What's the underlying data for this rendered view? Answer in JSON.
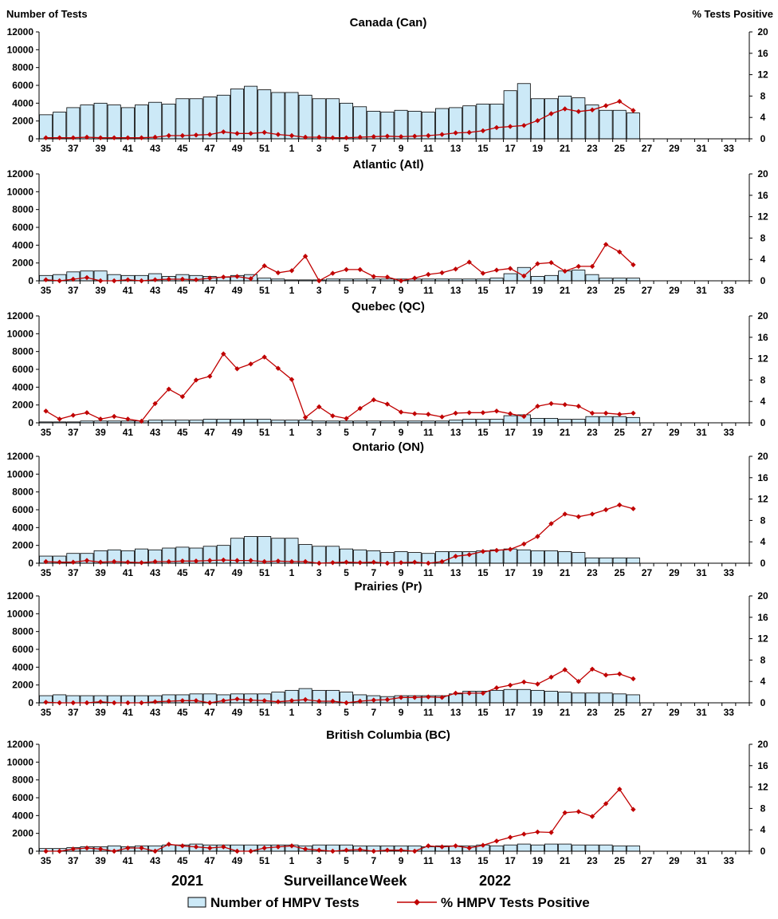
{
  "header": {
    "left_axis_title": "Number of Tests",
    "right_axis_title": "% Tests Positive"
  },
  "x_axis": {
    "labels": [
      "2021",
      "Surveillance",
      "Week",
      "2022"
    ]
  },
  "legend": {
    "bars_label": "Number of HMPV Tests",
    "line_label": "% HMPV Tests Positive"
  },
  "colors": {
    "bar_fill": "#cce9f7",
    "bar_stroke": "#000000",
    "line": "#c00000"
  },
  "chart_data": [
    {
      "type": "bar+line",
      "title": "Canada (Can)",
      "weeks": [
        "35",
        "36",
        "37",
        "38",
        "39",
        "40",
        "41",
        "42",
        "43",
        "44",
        "45",
        "46",
        "47",
        "48",
        "49",
        "50",
        "51",
        "52",
        "1",
        "2",
        "3",
        "4",
        "5",
        "6",
        "7",
        "8",
        "9",
        "10",
        "11",
        "12",
        "13",
        "14",
        "15",
        "16",
        "17",
        "18",
        "19",
        "20",
        "21",
        "22",
        "23",
        "24",
        "25",
        "26",
        "27",
        "28",
        "29",
        "30",
        "31",
        "32",
        "33",
        "34"
      ],
      "tick_labels": [
        "35",
        "37",
        "39",
        "41",
        "43",
        "45",
        "47",
        "49",
        "51",
        "1",
        "3",
        "5",
        "7",
        "9",
        "11",
        "13",
        "15",
        "17",
        "19",
        "21",
        "23",
        "25",
        "27",
        "29",
        "31",
        "33"
      ],
      "tests": [
        2700,
        3000,
        3500,
        3800,
        4000,
        3800,
        3500,
        3800,
        4100,
        3900,
        4500,
        4500,
        4700,
        4900,
        5600,
        5900,
        5500,
        5200,
        5200,
        4900,
        4500,
        4500,
        4000,
        3600,
        3100,
        3000,
        3200,
        3100,
        3000,
        3400,
        3500,
        3700,
        3900,
        3900,
        5400,
        6200,
        4500,
        4500,
        4800,
        4600,
        3800,
        3200,
        3200,
        2900,
        null,
        null,
        null,
        null,
        null,
        null,
        null,
        null
      ],
      "percent_positive": [
        0.2,
        0.2,
        0.2,
        0.3,
        0.2,
        0.2,
        0.2,
        0.2,
        0.3,
        0.6,
        0.6,
        0.7,
        0.8,
        1.3,
        1.0,
        1.0,
        1.2,
        0.8,
        0.6,
        0.3,
        0.3,
        0.2,
        0.2,
        0.3,
        0.4,
        0.5,
        0.4,
        0.5,
        0.6,
        0.8,
        1.1,
        1.2,
        1.5,
        2.1,
        2.3,
        2.5,
        3.4,
        4.7,
        5.6,
        5.1,
        5.4,
        6.2,
        7.0,
        5.3,
        null,
        null,
        null,
        null,
        null,
        null,
        null,
        null
      ],
      "ylim_left": [
        0,
        12000
      ],
      "ylim_right": [
        0,
        20
      ]
    },
    {
      "type": "bar+line",
      "title": "Atlantic (Atl)",
      "weeks": [
        "35",
        "36",
        "37",
        "38",
        "39",
        "40",
        "41",
        "42",
        "43",
        "44",
        "45",
        "46",
        "47",
        "48",
        "49",
        "50",
        "51",
        "52",
        "1",
        "2",
        "3",
        "4",
        "5",
        "6",
        "7",
        "8",
        "9",
        "10",
        "11",
        "12",
        "13",
        "14",
        "15",
        "16",
        "17",
        "18",
        "19",
        "20",
        "21",
        "22",
        "23",
        "24",
        "25",
        "26",
        "27",
        "28",
        "29",
        "30",
        "31",
        "32",
        "33",
        "34"
      ],
      "tick_labels": [
        "35",
        "37",
        "39",
        "41",
        "43",
        "45",
        "47",
        "49",
        "51",
        "1",
        "3",
        "5",
        "7",
        "9",
        "11",
        "13",
        "15",
        "17",
        "19",
        "21",
        "23",
        "25",
        "27",
        "29",
        "31",
        "33"
      ],
      "tests": [
        600,
        700,
        1000,
        1100,
        1100,
        700,
        600,
        600,
        800,
        500,
        700,
        600,
        500,
        400,
        600,
        700,
        300,
        200,
        100,
        100,
        100,
        200,
        200,
        200,
        200,
        200,
        200,
        200,
        200,
        200,
        200,
        200,
        200,
        300,
        800,
        1500,
        500,
        600,
        1100,
        1200,
        700,
        300,
        300,
        300,
        null,
        null,
        null,
        null,
        null,
        null,
        null,
        null
      ],
      "percent_positive": [
        0.2,
        0.0,
        0.3,
        0.6,
        0.0,
        0.0,
        0.2,
        0.0,
        0.2,
        0.3,
        0.3,
        0.2,
        0.5,
        0.7,
        0.8,
        0.4,
        2.8,
        1.5,
        1.9,
        4.6,
        0.0,
        1.4,
        2.1,
        2.1,
        0.8,
        0.7,
        0.0,
        0.5,
        1.2,
        1.5,
        2.2,
        3.5,
        1.4,
        2.0,
        2.3,
        0.9,
        3.2,
        3.4,
        1.8,
        2.7,
        2.7,
        6.8,
        5.4,
        3.0,
        null,
        null,
        null,
        null,
        null,
        null,
        null,
        null
      ],
      "ylim_left": [
        0,
        12000
      ],
      "ylim_right": [
        0,
        20
      ]
    },
    {
      "type": "bar+line",
      "title": "Quebec (QC)",
      "weeks": [
        "35",
        "36",
        "37",
        "38",
        "39",
        "40",
        "41",
        "42",
        "43",
        "44",
        "45",
        "46",
        "47",
        "48",
        "49",
        "50",
        "51",
        "52",
        "1",
        "2",
        "3",
        "4",
        "5",
        "6",
        "7",
        "8",
        "9",
        "10",
        "11",
        "12",
        "13",
        "14",
        "15",
        "16",
        "17",
        "18",
        "19",
        "20",
        "21",
        "22",
        "23",
        "24",
        "25",
        "26",
        "27",
        "28",
        "29",
        "30",
        "31",
        "32",
        "33",
        "34"
      ],
      "tick_labels": [
        "35",
        "37",
        "39",
        "41",
        "43",
        "45",
        "47",
        "49",
        "51",
        "1",
        "3",
        "5",
        "7",
        "9",
        "11",
        "13",
        "15",
        "17",
        "19",
        "21",
        "23",
        "25",
        "27",
        "29",
        "31",
        "33"
      ],
      "tests": [
        100,
        100,
        100,
        200,
        200,
        200,
        200,
        200,
        300,
        300,
        300,
        300,
        400,
        400,
        400,
        400,
        400,
        300,
        300,
        300,
        200,
        200,
        200,
        200,
        200,
        200,
        200,
        200,
        200,
        200,
        300,
        400,
        400,
        400,
        800,
        900,
        500,
        500,
        400,
        400,
        700,
        700,
        700,
        600,
        null,
        null,
        null,
        null,
        null,
        null,
        null,
        null
      ],
      "percent_positive": [
        2.2,
        0.7,
        1.4,
        1.9,
        0.7,
        1.2,
        0.7,
        0.3,
        3.6,
        6.3,
        4.9,
        8.0,
        8.7,
        12.9,
        10.1,
        11.0,
        12.3,
        10.2,
        8.1,
        1.0,
        3.0,
        1.3,
        0.8,
        2.7,
        4.3,
        3.5,
        2.0,
        1.7,
        1.6,
        1.1,
        1.8,
        1.9,
        1.9,
        2.2,
        1.7,
        1.2,
        3.1,
        3.6,
        3.4,
        3.1,
        1.8,
        1.8,
        1.6,
        1.8,
        null,
        null,
        null,
        null,
        null,
        null,
        null,
        null
      ],
      "ylim_left": [
        0,
        12000
      ],
      "ylim_right": [
        0,
        20
      ]
    },
    {
      "type": "bar+line",
      "title": "Ontario (ON)",
      "weeks": [
        "35",
        "36",
        "37",
        "38",
        "39",
        "40",
        "41",
        "42",
        "43",
        "44",
        "45",
        "46",
        "47",
        "48",
        "49",
        "50",
        "51",
        "52",
        "1",
        "2",
        "3",
        "4",
        "5",
        "6",
        "7",
        "8",
        "9",
        "10",
        "11",
        "12",
        "13",
        "14",
        "15",
        "16",
        "17",
        "18",
        "19",
        "20",
        "21",
        "22",
        "23",
        "24",
        "25",
        "26",
        "27",
        "28",
        "29",
        "30",
        "31",
        "32",
        "33",
        "34"
      ],
      "tick_labels": [
        "35",
        "37",
        "39",
        "41",
        "43",
        "45",
        "47",
        "49",
        "51",
        "1",
        "3",
        "5",
        "7",
        "9",
        "11",
        "13",
        "15",
        "17",
        "19",
        "21",
        "23",
        "25",
        "27",
        "29",
        "31",
        "33"
      ],
      "tests": [
        800,
        800,
        1100,
        1100,
        1400,
        1500,
        1400,
        1600,
        1500,
        1700,
        1800,
        1700,
        1900,
        2000,
        2800,
        3000,
        3000,
        2800,
        2800,
        2100,
        1900,
        1900,
        1600,
        1500,
        1400,
        1200,
        1300,
        1200,
        1100,
        1300,
        1300,
        1300,
        1400,
        1500,
        1600,
        1500,
        1400,
        1400,
        1300,
        1200,
        600,
        600,
        600,
        600,
        null,
        null,
        null,
        null,
        null,
        null,
        null,
        null
      ],
      "percent_positive": [
        0.3,
        0.2,
        0.2,
        0.5,
        0.2,
        0.3,
        0.2,
        0.1,
        0.3,
        0.3,
        0.4,
        0.4,
        0.5,
        0.6,
        0.5,
        0.5,
        0.3,
        0.4,
        0.3,
        0.3,
        0.0,
        0.1,
        0.2,
        0.1,
        0.2,
        0.0,
        0.1,
        0.2,
        0.0,
        0.3,
        1.3,
        1.6,
        2.2,
        2.4,
        2.6,
        3.6,
        5.0,
        7.4,
        9.2,
        8.7,
        9.2,
        10.0,
        10.9,
        10.2,
        null,
        null,
        null,
        null,
        null,
        null,
        null,
        null
      ],
      "ylim_left": [
        0,
        12000
      ],
      "ylim_right": [
        0,
        20
      ]
    },
    {
      "type": "bar+line",
      "title": "Prairies (Pr)",
      "weeks": [
        "35",
        "36",
        "37",
        "38",
        "39",
        "40",
        "41",
        "42",
        "43",
        "44",
        "45",
        "46",
        "47",
        "48",
        "49",
        "50",
        "51",
        "52",
        "1",
        "2",
        "3",
        "4",
        "5",
        "6",
        "7",
        "8",
        "9",
        "10",
        "11",
        "12",
        "13",
        "14",
        "15",
        "16",
        "17",
        "18",
        "19",
        "20",
        "21",
        "22",
        "23",
        "24",
        "25",
        "26",
        "27",
        "28",
        "29",
        "30",
        "31",
        "32",
        "33",
        "34"
      ],
      "tick_labels": [
        "35",
        "37",
        "39",
        "41",
        "43",
        "45",
        "47",
        "49",
        "51",
        "1",
        "3",
        "5",
        "7",
        "9",
        "11",
        "13",
        "15",
        "17",
        "19",
        "21",
        "23",
        "25",
        "27",
        "29",
        "31",
        "33"
      ],
      "tests": [
        800,
        900,
        800,
        800,
        800,
        800,
        800,
        800,
        800,
        900,
        900,
        1000,
        1000,
        900,
        1000,
        1000,
        1000,
        1200,
        1400,
        1600,
        1400,
        1400,
        1200,
        900,
        800,
        700,
        800,
        800,
        800,
        800,
        1000,
        1300,
        1300,
        1400,
        1500,
        1500,
        1400,
        1300,
        1200,
        1100,
        1100,
        1100,
        1000,
        900,
        null,
        null,
        null,
        null,
        null,
        null,
        null,
        null
      ],
      "percent_positive": [
        0.1,
        0.0,
        0.0,
        0.0,
        0.2,
        0.0,
        0.0,
        0.0,
        0.2,
        0.3,
        0.4,
        0.4,
        0.0,
        0.4,
        0.7,
        0.5,
        0.4,
        0.2,
        0.4,
        0.6,
        0.3,
        0.3,
        0.0,
        0.3,
        0.5,
        0.6,
        1.0,
        1.0,
        1.1,
        1.0,
        1.8,
        1.8,
        1.8,
        2.8,
        3.3,
        3.9,
        3.5,
        4.8,
        6.2,
        4.0,
        6.3,
        5.2,
        5.4,
        4.5,
        null,
        null,
        null,
        null,
        null,
        null,
        null,
        null
      ],
      "ylim_left": [
        0,
        12000
      ],
      "ylim_right": [
        0,
        20
      ]
    },
    {
      "type": "bar+line",
      "title": "British Columbia (BC)",
      "weeks": [
        "35",
        "36",
        "37",
        "38",
        "39",
        "40",
        "41",
        "42",
        "43",
        "44",
        "45",
        "46",
        "47",
        "48",
        "49",
        "50",
        "51",
        "52",
        "1",
        "2",
        "3",
        "4",
        "5",
        "6",
        "7",
        "8",
        "9",
        "10",
        "11",
        "12",
        "13",
        "14",
        "15",
        "16",
        "17",
        "18",
        "19",
        "20",
        "21",
        "22",
        "23",
        "24",
        "25",
        "26",
        "27",
        "28",
        "29",
        "30",
        "31",
        "32",
        "33",
        "34"
      ],
      "tick_labels": [
        "35",
        "37",
        "39",
        "41",
        "43",
        "45",
        "47",
        "49",
        "51",
        "1",
        "3",
        "5",
        "7",
        "9",
        "11",
        "13",
        "15",
        "17",
        "19",
        "21",
        "23",
        "25",
        "27",
        "29",
        "31",
        "33"
      ],
      "tests": [
        300,
        300,
        400,
        500,
        500,
        600,
        500,
        600,
        600,
        700,
        700,
        800,
        700,
        700,
        700,
        700,
        700,
        700,
        700,
        600,
        700,
        700,
        700,
        600,
        600,
        600,
        600,
        600,
        500,
        600,
        600,
        600,
        700,
        600,
        700,
        800,
        700,
        800,
        800,
        700,
        700,
        700,
        600,
        600,
        null,
        null,
        null,
        null,
        null,
        null,
        null,
        null
      ],
      "percent_positive": [
        0.0,
        0.0,
        0.4,
        0.6,
        0.4,
        0.0,
        0.6,
        0.6,
        0.0,
        1.3,
        1.0,
        0.8,
        0.6,
        0.8,
        0.0,
        0.0,
        0.6,
        0.8,
        1.0,
        0.4,
        0.2,
        0.0,
        0.2,
        0.3,
        0.0,
        0.2,
        0.2,
        0.0,
        1.0,
        0.8,
        1.0,
        0.6,
        1.1,
        1.9,
        2.6,
        3.2,
        3.6,
        3.5,
        7.2,
        7.4,
        6.5,
        8.9,
        11.6,
        7.8,
        null,
        null,
        null,
        null,
        null,
        null,
        null,
        null
      ],
      "ylim_left": [
        0,
        12000
      ],
      "ylim_right": [
        0,
        20
      ]
    }
  ]
}
